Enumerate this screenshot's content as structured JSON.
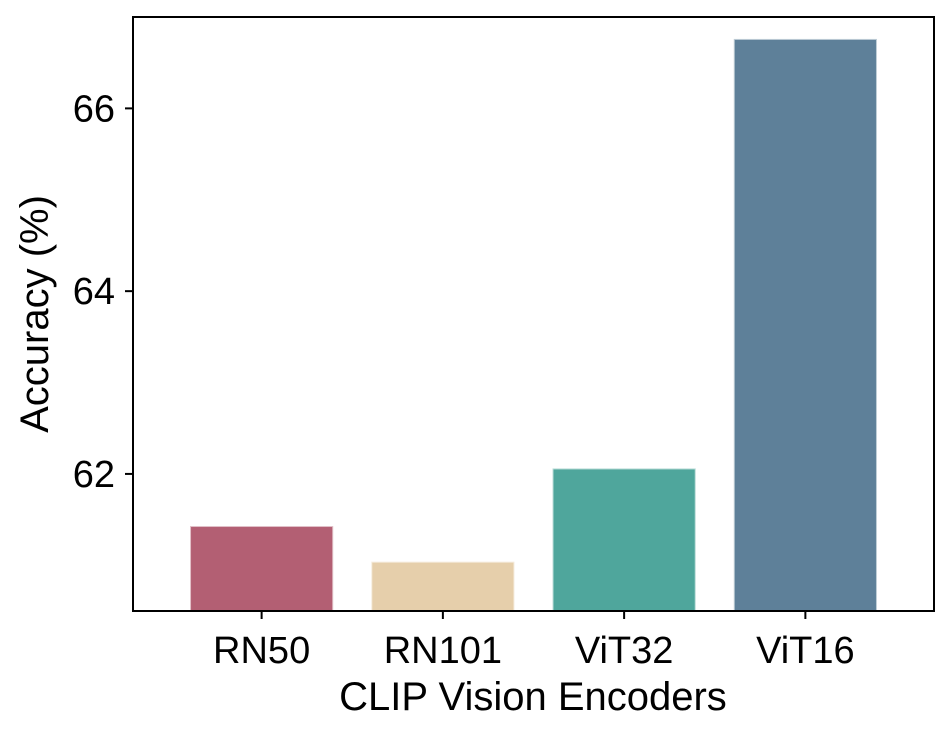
{
  "chart_data": {
    "type": "bar",
    "title": "",
    "xlabel": "CLIP Vision Encoders",
    "ylabel": "Accuracy (%)",
    "categories": [
      "RN50",
      "RN101",
      "ViT32",
      "ViT16"
    ],
    "values": [
      61.43,
      61.04,
      62.06,
      66.76
    ],
    "colors": [
      "#b35f73",
      "#e6cfab",
      "#4fa69c",
      "#5e8099"
    ],
    "ylim": [
      60.5,
      67.0
    ],
    "yticks": [
      62,
      64,
      66
    ],
    "grid": false,
    "legend": "none"
  }
}
